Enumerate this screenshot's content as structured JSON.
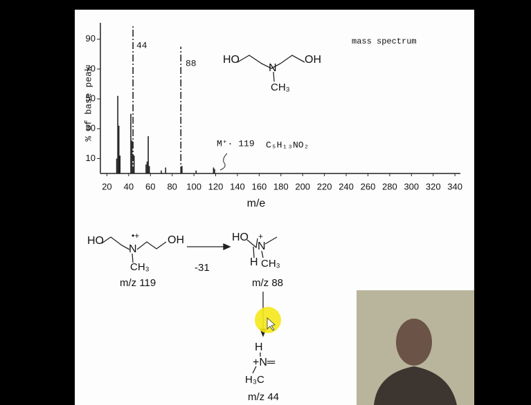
{
  "chart_data": {
    "type": "bar",
    "title": "mass spectrum",
    "x_label": "m/e",
    "y_label": "% of base peak",
    "x": [
      29,
      30,
      31,
      32,
      42,
      43,
      44,
      45,
      56,
      57,
      58,
      59,
      70,
      74,
      88,
      89,
      102,
      118,
      119
    ],
    "values": [
      10,
      52,
      32,
      12,
      40,
      22,
      100,
      12,
      6,
      8,
      25,
      5,
      2,
      4,
      85,
      5,
      2,
      4,
      3
    ],
    "color": "#222222",
    "xlim": [
      14,
      345
    ],
    "ylim": [
      0,
      101
    ],
    "xticks": [
      20,
      40,
      60,
      80,
      100,
      120,
      140,
      160,
      180,
      200,
      220,
      240,
      260,
      280,
      300,
      320,
      340
    ],
    "yticks": [
      10,
      30,
      50,
      70,
      90
    ],
    "annotations": [
      "44",
      "88",
      "M⁺· 119",
      "C₅H₁₃NO₂"
    ]
  },
  "diagram": {
    "labels": [
      "HO",
      "N",
      "OH",
      "CH₃",
      "HO",
      "•+",
      "N",
      "OH",
      "CH₃",
      "m/z 119",
      "-31",
      "HO",
      "+",
      "N",
      "H",
      "CH₃",
      "m/z 88",
      "H",
      "+N═",
      "H₃C",
      "m/z 44"
    ]
  }
}
